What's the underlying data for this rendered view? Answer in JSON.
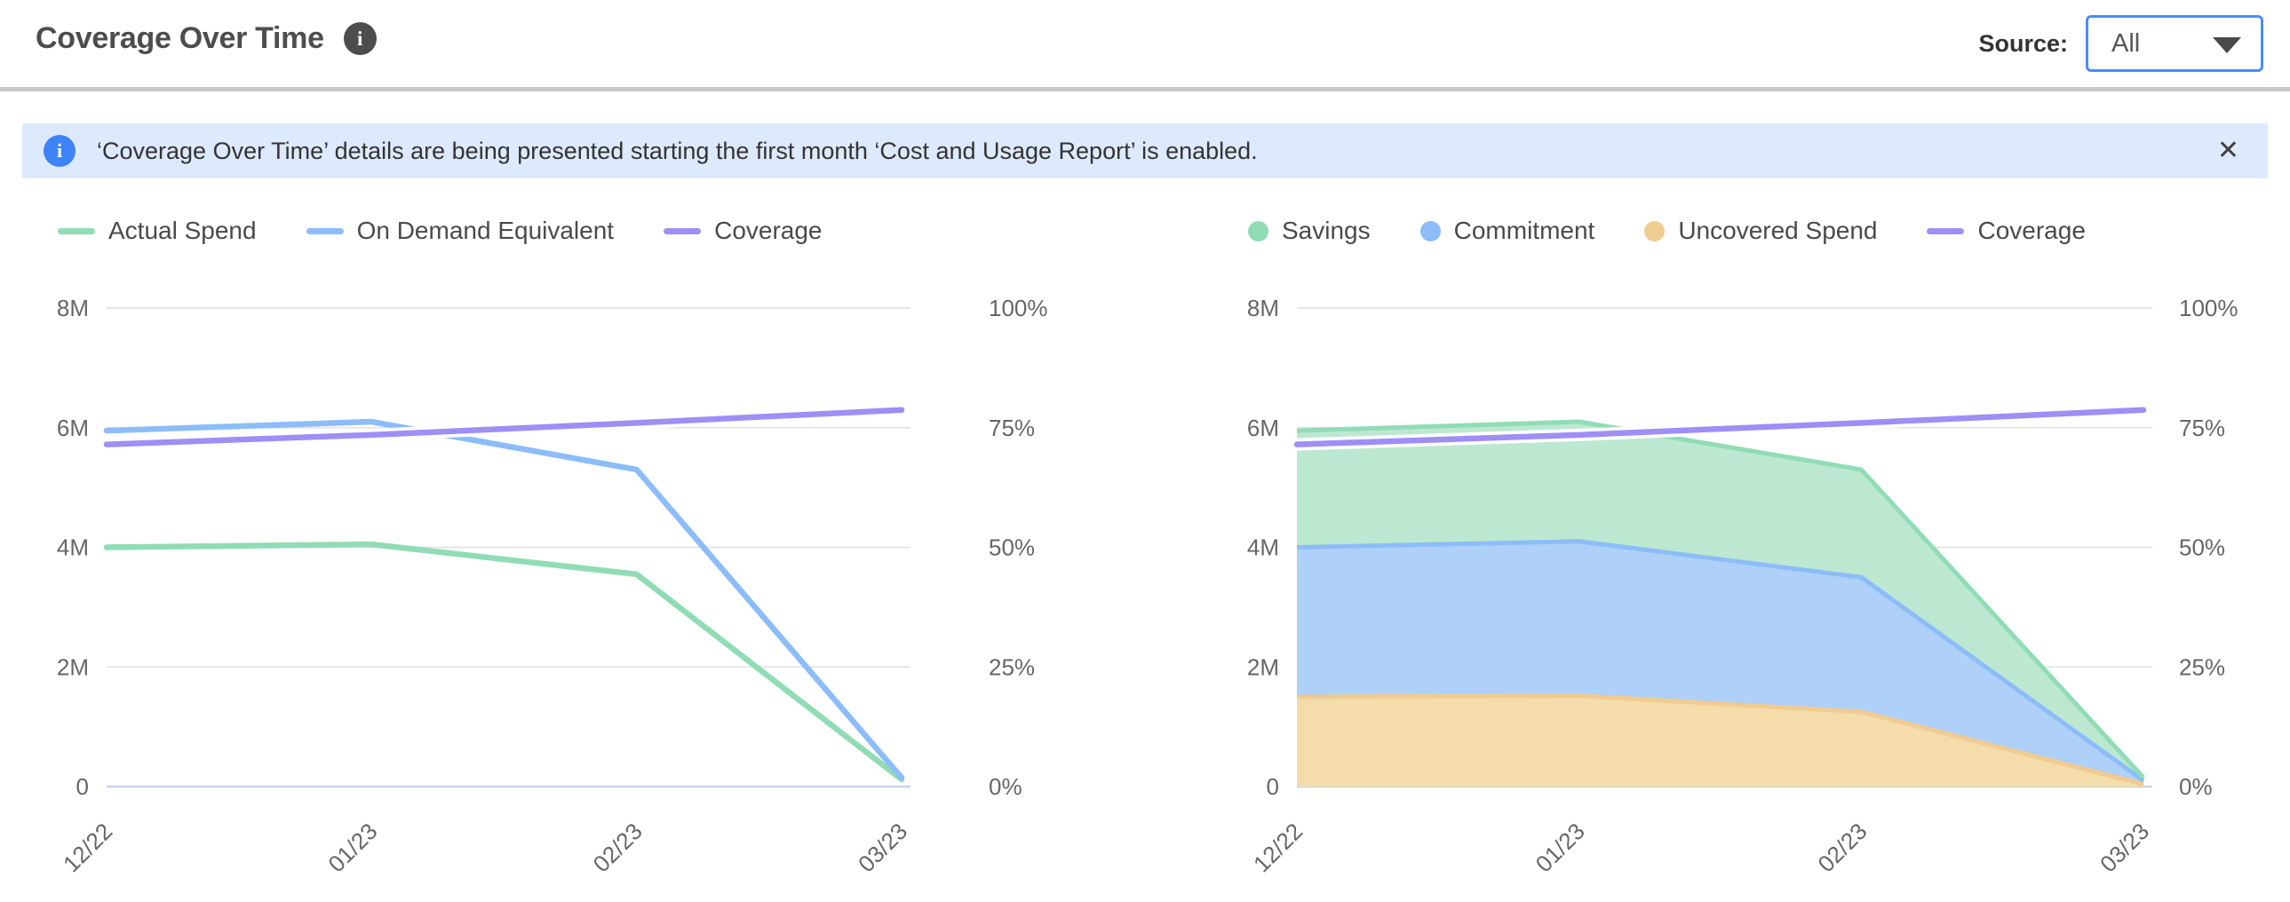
{
  "header": {
    "title": "Coverage Over Time",
    "info_glyph": "i",
    "source_label": "Source:",
    "source_value": "All"
  },
  "banner": {
    "info_glyph": "i",
    "message": "‘Coverage Over Time’ details are being presented starting the first month ‘Cost and Usage Report’ is enabled.",
    "close_glyph": "✕"
  },
  "colors": {
    "accent_blue": "#4a8cf7",
    "banner_bg": "#dde9fc",
    "banner_icon_blue": "#3f83f8",
    "grid": "#e3e3e5",
    "zero_axis": "#c7d2ec",
    "axis_text": "#666666",
    "legend_text": "#4a4a4a",
    "title_text": "#4d4d4d",
    "divider": "#c8c8c8",
    "series_green": "#90dcb5",
    "series_blue": "#8cbdf8",
    "series_orange": "#f0cb92",
    "series_purple": "#9e8ef5"
  },
  "chart_data": [
    {
      "type": "line",
      "title": "Coverage Over Time - spend lines",
      "x": [
        "12/22",
        "01/23",
        "02/23",
        "03/23"
      ],
      "ylim": [
        0,
        8000000
      ],
      "y2lim": [
        0,
        100
      ],
      "yticks": [
        "8M",
        "6M",
        "4M",
        "2M",
        "0"
      ],
      "y2ticks": [
        "100%",
        "75%",
        "50%",
        "25%",
        "0%"
      ],
      "grid": true,
      "legend_position": "top",
      "legend_order": [
        0,
        1,
        2
      ],
      "series": [
        {
          "name": "Actual Spend",
          "axis": "left",
          "marker": "line",
          "color": "#90dcb5",
          "values": [
            4000000,
            4050000,
            3550000,
            120000
          ]
        },
        {
          "name": "On Demand Equivalent",
          "axis": "left",
          "marker": "line",
          "color": "#8cbdf8",
          "values": [
            5950000,
            6100000,
            5300000,
            150000
          ]
        },
        {
          "name": "Coverage",
          "axis": "right",
          "marker": "line",
          "color": "#9e8ef5",
          "halo": "#ffffff",
          "values": [
            71.5,
            73.5,
            76,
            78.7
          ]
        }
      ]
    },
    {
      "type": "area",
      "title": "Coverage Over Time - stacked spend breakdown",
      "x": [
        "12/22",
        "01/23",
        "02/23",
        "03/23"
      ],
      "ylim": [
        0,
        8000000
      ],
      "y2lim": [
        0,
        100
      ],
      "yticks": [
        "8M",
        "6M",
        "4M",
        "2M",
        "0"
      ],
      "y2ticks": [
        "100%",
        "75%",
        "50%",
        "25%",
        "0%"
      ],
      "grid": true,
      "legend_position": "top",
      "legend_order": [
        2,
        1,
        0,
        3
      ],
      "series": [
        {
          "name": "Uncovered Spend",
          "axis": "left",
          "marker": "circle",
          "stack": true,
          "fill": "#f5dcab",
          "color": "#f0cb92",
          "values": [
            1500000,
            1520000,
            1250000,
            40000
          ]
        },
        {
          "name": "Commitment",
          "axis": "left",
          "marker": "circle",
          "stack": true,
          "fill": "#aed0f9",
          "color": "#8cbdf8",
          "values": [
            2500000,
            2580000,
            2250000,
            60000
          ]
        },
        {
          "name": "Savings",
          "axis": "left",
          "marker": "circle",
          "stack": true,
          "fill": "#bce8d1",
          "color": "#90dcb5",
          "values": [
            1950000,
            2000000,
            1800000,
            50000
          ]
        },
        {
          "name": "Coverage",
          "axis": "right",
          "marker": "line",
          "color": "#9e8ef5",
          "halo": "#ffffff",
          "values": [
            71.5,
            73.5,
            76,
            78.7
          ]
        }
      ]
    }
  ]
}
